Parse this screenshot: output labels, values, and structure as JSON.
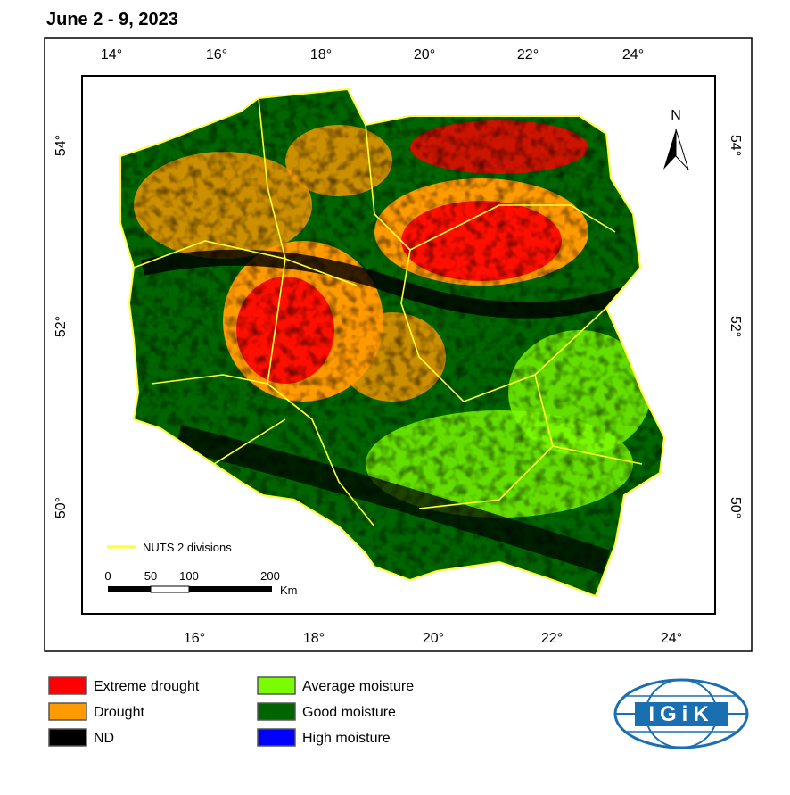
{
  "header": {
    "title": "June 2 - 9, 2023"
  },
  "map": {
    "top_ticks": [
      "14°",
      "16°",
      "18°",
      "20°",
      "22°",
      "24°"
    ],
    "bottom_ticks": [
      "16°",
      "18°",
      "20°",
      "22°",
      "24°"
    ],
    "left_ticks": [
      "54°",
      "52°",
      "50°"
    ],
    "right_ticks": [
      "54°",
      "52°",
      "50°"
    ],
    "north": "N",
    "nuts_label": "NUTS 2 divisions",
    "scale": {
      "labels": [
        "0",
        "50",
        "100",
        "200"
      ],
      "unit": "Km"
    }
  },
  "legend": [
    {
      "label": "Extreme drought",
      "color": "#ff0000"
    },
    {
      "label": "Drought",
      "color": "#ff9a00"
    },
    {
      "label": "ND",
      "color": "#000000"
    },
    {
      "label": "Average moisture",
      "color": "#7cfc00"
    },
    {
      "label": "Good moisture",
      "color": "#006400"
    },
    {
      "label": "High moisture",
      "color": "#0000ff"
    }
  ],
  "logo": {
    "text": "IGiK"
  }
}
